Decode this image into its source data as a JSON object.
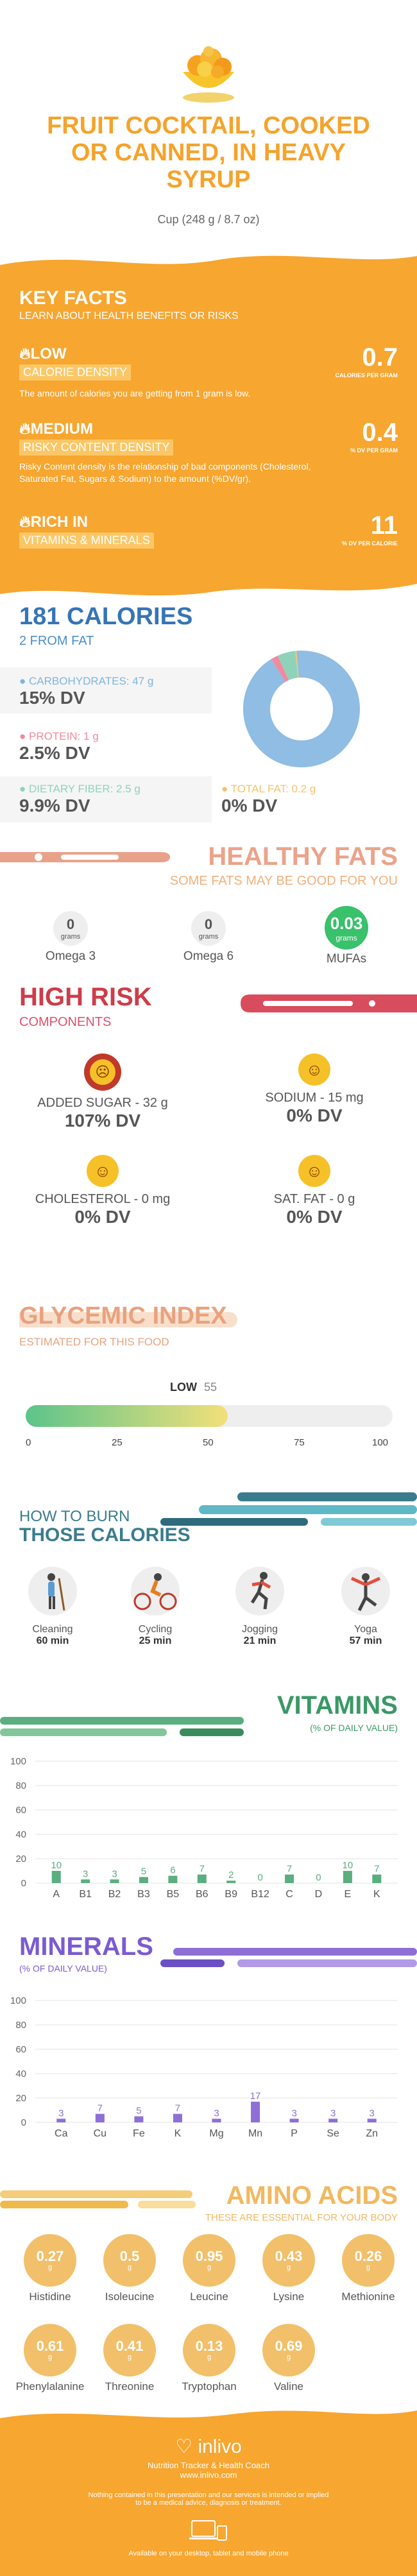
{
  "header": {
    "title_lines": [
      "FRUIT COCKTAIL, COOKED",
      "OR CANNED, IN HEAVY",
      "SYRUP"
    ],
    "serving": "Cup (248 g / 8.7 oz)"
  },
  "key_facts": {
    "title": "KEY FACTS",
    "subtitle": "LEARN ABOUT HEALTH BENEFITS OR RISKS",
    "rows": [
      {
        "level": "LOW",
        "label": "CALORIE DENSITY",
        "value": "0.7",
        "unit": "CALORIES PER GRAM",
        "desc": "The amount of calories you are getting from 1 gram is low."
      },
      {
        "level": "MEDIUM",
        "label": "RISKY CONTENT DENSITY",
        "value": "0.4",
        "unit": "% DV PER GRAM",
        "desc": "Risky Content density is the relationship of bad components (Cholesterol, Saturated Fat, Sugars & Sodium) to the amount (%DV/gr)."
      },
      {
        "level": "RICH IN",
        "label": "VITAMINS & MINERALS",
        "value": "11",
        "unit": "% DV PER CALORIE",
        "desc": ""
      }
    ]
  },
  "calories": {
    "title": "181 CALORIES",
    "from_fat": "2 FROM FAT",
    "items": [
      {
        "label": "CARBOHYDRATES: 47 g",
        "dv": "15% DV",
        "color": "#7fb4de"
      },
      {
        "label": "PROTEIN: 1 g",
        "dv": "2.5% DV",
        "color": "#f08aa0"
      },
      {
        "label": "DIETARY FIBER: 2.5 g",
        "dv": "9.9% DV",
        "color": "#8ed3b9"
      },
      {
        "label": "TOTAL FAT: 0.2 g",
        "dv": "0% DV",
        "color": "#f5c36b"
      }
    ],
    "donut": [
      {
        "name": "carbs",
        "value": 47,
        "color": "#8fbde3"
      },
      {
        "name": "protein",
        "value": 1,
        "color": "#f08aa0"
      },
      {
        "name": "fiber",
        "value": 2.5,
        "color": "#8ed3b9"
      },
      {
        "name": "fat",
        "value": 0.2,
        "color": "#f5c36b"
      }
    ]
  },
  "healthy_fats": {
    "title": "HEALTHY FATS",
    "subtitle": "SOME FATS MAY BE GOOD FOR YOU",
    "items": [
      {
        "value": "0",
        "unit": "grams",
        "name": "Omega 3",
        "highlight": false
      },
      {
        "value": "0",
        "unit": "grams",
        "name": "Omega 6",
        "highlight": false
      },
      {
        "value": "0.03",
        "unit": "grams",
        "name": "MUFAs",
        "highlight": true
      }
    ]
  },
  "high_risk": {
    "title": "HIGH RISK",
    "subtitle": "COMPONENTS",
    "items": [
      {
        "label": "ADDED SUGAR - 32 g",
        "dv": "107% DV",
        "bad": true
      },
      {
        "label": "SODIUM - 15 mg",
        "dv": "0% DV",
        "bad": false
      },
      {
        "label": "CHOLESTEROL - 0 mg",
        "dv": "0% DV",
        "bad": false
      },
      {
        "label": "SAT. FAT - 0 g",
        "dv": "0% DV",
        "bad": false
      }
    ]
  },
  "glycemic": {
    "title": "GLYCEMIC INDEX",
    "subtitle": "ESTIMATED FOR THIS FOOD",
    "level": "LOW",
    "value": 55,
    "ticks": [
      "0",
      "25",
      "50",
      "75",
      "100"
    ]
  },
  "burn": {
    "title1": "HOW TO BURN",
    "title2": "THOSE CALORIES",
    "items": [
      {
        "name": "Cleaning",
        "time": "60 min",
        "icon": "cleaning-icon"
      },
      {
        "name": "Cycling",
        "time": "25 min",
        "icon": "cycling-icon"
      },
      {
        "name": "Jogging",
        "time": "21 min",
        "icon": "jogging-icon"
      },
      {
        "name": "Yoga",
        "time": "57 min",
        "icon": "yoga-icon"
      }
    ]
  },
  "vitamins": {
    "title": "VITAMINS",
    "subtitle": "(% OF DAILY VALUE)"
  },
  "minerals": {
    "title": "MINERALS",
    "subtitle": "(% OF DAILY VALUE)"
  },
  "chart_data": [
    {
      "type": "bar",
      "categories": [
        "A",
        "B1",
        "B2",
        "B3",
        "B5",
        "B6",
        "B9",
        "B12",
        "C",
        "D",
        "E",
        "K"
      ],
      "values": [
        10,
        3,
        3,
        5,
        6,
        7,
        2,
        0,
        7,
        0,
        10,
        7
      ],
      "ylim": [
        0,
        100
      ],
      "yticks": [
        "0",
        "20",
        "40",
        "60",
        "80",
        "100"
      ],
      "color": "#5aae7f"
    },
    {
      "type": "bar",
      "categories": [
        "Ca",
        "Cu",
        "Fe",
        "K",
        "Mg",
        "Mn",
        "P",
        "Se",
        "Zn"
      ],
      "values": [
        3,
        7,
        5,
        7,
        3,
        17,
        3,
        3,
        3
      ],
      "ylim": [
        0,
        100
      ],
      "yticks": [
        "0",
        "20",
        "40",
        "60",
        "80",
        "100"
      ],
      "color": "#8e6fd6"
    }
  ],
  "amino": {
    "title": "AMINO ACIDS",
    "subtitle": "THESE ARE ESSENTIAL FOR YOUR BODY",
    "unit": "g",
    "items": [
      {
        "value": "0.27",
        "name": "Histidine"
      },
      {
        "value": "0.5",
        "name": "Isoleucine"
      },
      {
        "value": "0.95",
        "name": "Leucine"
      },
      {
        "value": "0.43",
        "name": "Lysine"
      },
      {
        "value": "0.26",
        "name": "Methionine"
      },
      {
        "value": "0.61",
        "name": "Phenylalanine"
      },
      {
        "value": "0.41",
        "name": "Threonine"
      },
      {
        "value": "0.13",
        "name": "Tryptophan"
      },
      {
        "value": "0.69",
        "name": "Valine"
      }
    ]
  },
  "footer": {
    "brand": "inlivo",
    "tagline": "Nutrition Tracker & Health Coach",
    "url": "www.inlivo.com",
    "disclaimer1": "Nothing contained in this presentation and our services is intended or implied",
    "disclaimer2": "to be a medical advice, diagnosis or treatment.",
    "available": "Available on your desktop, tablet and mobile phone"
  }
}
